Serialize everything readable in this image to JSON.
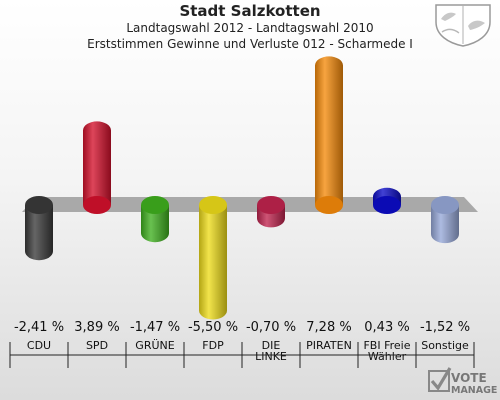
{
  "header": {
    "title": "Stadt Salzkotten",
    "subtitle": "Landtagswahl 2012 - Landtagswahl 2010",
    "subtitle2": "Erststimmen Gewinne und Verluste 012 - Scharmede I"
  },
  "chart_data": {
    "type": "bar",
    "title": "Stadt Salzkotten",
    "subtitle": "Landtagswahl 2012 - Landtagswahl 2010",
    "categories": [
      "CDU",
      "SPD",
      "GRÜNE",
      "FDP",
      "DIE\nLINKE",
      "PIRATEN",
      "FBI Freie\nWähler",
      "Sonstige"
    ],
    "values": [
      -2.41,
      3.89,
      -1.47,
      -5.5,
      -0.7,
      7.28,
      0.43,
      -1.52
    ],
    "value_labels": [
      "-2,41 %",
      "3,89 %",
      "-1,47 %",
      "-5,50 %",
      "-0,70 %",
      "7,28 %",
      "0,43 %",
      "-1,52 %"
    ],
    "colors": [
      "#3a3a3a",
      "#d4112c",
      "#3fb01e",
      "#eedc1a",
      "#c0244e",
      "#f58a0a",
      "#0c0cc8",
      "#96a8d8"
    ],
    "ylim": [
      -7.3,
      7.3
    ],
    "grid": false,
    "legend": "none"
  },
  "logo": {
    "line1": "VOTE",
    "line2": "MANAGER"
  }
}
